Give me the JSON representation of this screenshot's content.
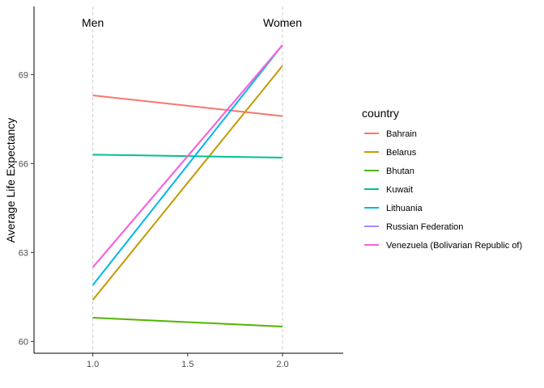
{
  "chart_data": {
    "type": "line",
    "title": "",
    "xlabel": "",
    "ylabel": "Average Life Expectancy",
    "x": [
      1.0,
      2.0
    ],
    "xlim": [
      0.69,
      2.32
    ],
    "ylim": [
      59.6,
      71.3
    ],
    "xticks": [
      "1.0",
      "1.5",
      "2.0"
    ],
    "xtick_values": [
      1.0,
      1.5,
      2.0
    ],
    "yticks": [
      "60",
      "63",
      "66",
      "69"
    ],
    "ytick_values": [
      60,
      63,
      66,
      69
    ],
    "grid": false,
    "group_labels": [
      {
        "x": 1.0,
        "label": "Men"
      },
      {
        "x": 2.0,
        "label": "Women"
      }
    ],
    "legend_title": "country",
    "legend_position": "right",
    "series": [
      {
        "name": "Bahrain",
        "values": [
          68.3,
          67.6
        ],
        "color": "#F8766D"
      },
      {
        "name": "Belarus",
        "values": [
          61.4,
          69.3
        ],
        "color": "#C49A00"
      },
      {
        "name": "Bhutan",
        "values": [
          60.8,
          60.5
        ],
        "color": "#53B400"
      },
      {
        "name": "Kuwait",
        "values": [
          66.3,
          66.2
        ],
        "color": "#00C094"
      },
      {
        "name": "Lithuania",
        "values": [
          61.9,
          70.0
        ],
        "color": "#00B6EB"
      },
      {
        "name": "Russian Federation",
        "values": [
          62.5,
          70.0
        ],
        "color": "#A58AFF"
      },
      {
        "name": "Venezuela (Bolivarian Republic of)",
        "values": [
          62.5,
          70.0
        ],
        "color": "#FB61D7"
      }
    ]
  }
}
